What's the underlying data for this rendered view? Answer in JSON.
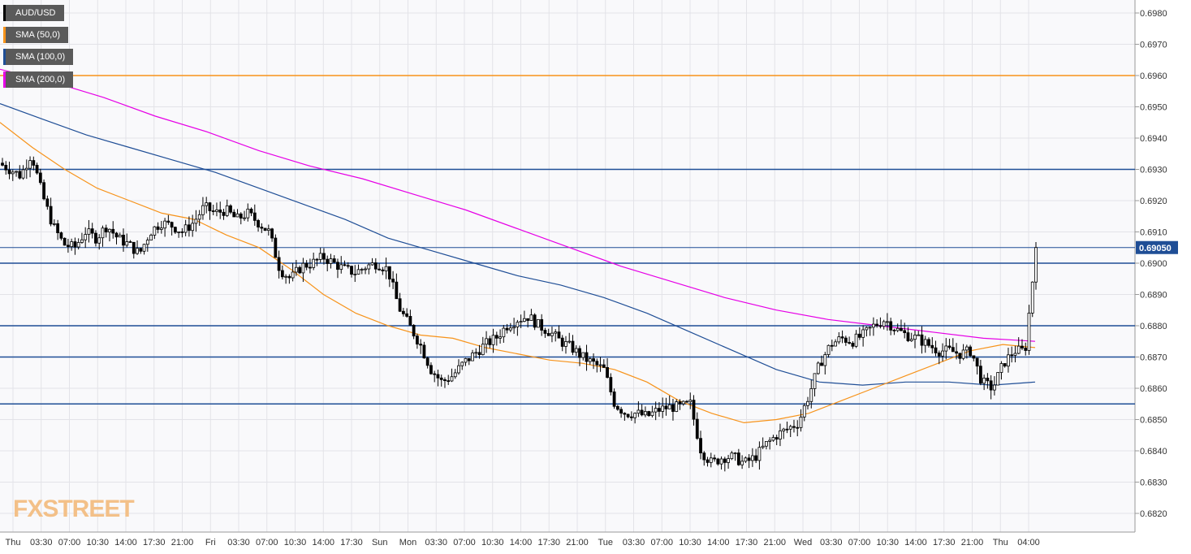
{
  "chart_data": {
    "type": "candlestick",
    "symbol": "AUD/USD",
    "legend": [
      {
        "label": "AUD/USD",
        "color": "#000000"
      },
      {
        "label": "SMA (50,0)",
        "color": "#f7931a"
      },
      {
        "label": "SMA (100,0)",
        "color": "#1f4e96"
      },
      {
        "label": "SMA (200,0)",
        "color": "#e600e6"
      }
    ],
    "y_ticks": [
      "0.6980",
      "0.6970",
      "0.6960",
      "0.6950",
      "0.6940",
      "0.6930",
      "0.6920",
      "0.6910",
      "0.6900",
      "0.6890",
      "0.6880",
      "0.6870",
      "0.6860",
      "0.6850",
      "0.6840",
      "0.6830",
      "0.6820"
    ],
    "ylim": [
      0.6813,
      0.6985
    ],
    "x_ticks": [
      "Thu",
      "03:30",
      "07:00",
      "10:30",
      "14:00",
      "17:30",
      "21:00",
      "Fri",
      "03:30",
      "07:00",
      "10:30",
      "14:00",
      "17:30",
      "Sun",
      "Mon",
      "03:30",
      "07:00",
      "10:30",
      "14:00",
      "17:30",
      "21:00",
      "Tue",
      "03:30",
      "07:00",
      "10:30",
      "14:00",
      "17:30",
      "21:00",
      "Wed",
      "03:30",
      "07:00",
      "10:30",
      "14:00",
      "17:30",
      "21:00",
      "Thu",
      "04:00"
    ],
    "current_price": "0.69050",
    "current_value": 0.6905,
    "horizontal_levels": [
      {
        "value": 0.696,
        "color": "#f7931a"
      },
      {
        "value": 0.693,
        "color": "#1f4e96"
      },
      {
        "value": 0.69,
        "color": "#1f4e96"
      },
      {
        "value": 0.688,
        "color": "#1f4e96"
      },
      {
        "value": 0.687,
        "color": "#1f4e96"
      },
      {
        "value": 0.6855,
        "color": "#1f4e96"
      }
    ],
    "price_path": [
      0.6932,
      0.693,
      0.6928,
      0.6935,
      0.6922,
      0.6912,
      0.6906,
      0.6905,
      0.691,
      0.6908,
      0.6912,
      0.6908,
      0.6906,
      0.6903,
      0.691,
      0.6913,
      0.6912,
      0.691,
      0.6913,
      0.6918,
      0.6916,
      0.6917,
      0.6914,
      0.6916,
      0.6913,
      0.691,
      0.6898,
      0.6895,
      0.6899,
      0.69,
      0.6902,
      0.69,
      0.6898,
      0.6897,
      0.6899,
      0.69,
      0.6898,
      0.6886,
      0.688,
      0.6874,
      0.6866,
      0.6862,
      0.6864,
      0.6868,
      0.6871,
      0.6874,
      0.6876,
      0.688,
      0.6882,
      0.6883,
      0.688,
      0.6878,
      0.6875,
      0.6873,
      0.687,
      0.6868,
      0.6866,
      0.6855,
      0.6852,
      0.6852,
      0.6851,
      0.6853,
      0.6854,
      0.6854,
      0.6855,
      0.684,
      0.6836,
      0.6838,
      0.6838,
      0.6836,
      0.6838,
      0.6842,
      0.6845,
      0.6847,
      0.6849,
      0.6858,
      0.6868,
      0.6874,
      0.6876,
      0.6875,
      0.6877,
      0.688,
      0.6882,
      0.6879,
      0.6877,
      0.6876,
      0.6874,
      0.6872,
      0.6872,
      0.6871,
      0.6872,
      0.6862,
      0.686,
      0.6868,
      0.6872,
      0.6872,
      0.6905
    ],
    "sma50_path": [
      0.6945,
      0.6937,
      0.693,
      0.6924,
      0.692,
      0.6916,
      0.6914,
      0.6909,
      0.6905,
      0.6898,
      0.689,
      0.6884,
      0.688,
      0.6877,
      0.6876,
      0.6873,
      0.6871,
      0.6869,
      0.6868,
      0.6866,
      0.6862,
      0.6856,
      0.6852,
      0.6849,
      0.685,
      0.6852,
      0.6856,
      0.686,
      0.6864,
      0.6868,
      0.6872,
      0.6874,
      0.6873
    ],
    "sma100_path": [
      0.6951,
      0.6946,
      0.6941,
      0.6937,
      0.6933,
      0.6929,
      0.6924,
      0.6919,
      0.6914,
      0.6908,
      0.6904,
      0.69,
      0.6896,
      0.6893,
      0.6889,
      0.6884,
      0.6878,
      0.6872,
      0.6866,
      0.6862,
      0.6861,
      0.6862,
      0.6862,
      0.6861,
      0.6862
    ],
    "sma200_path": [
      0.6962,
      0.6958,
      0.6953,
      0.6947,
      0.6942,
      0.6936,
      0.6931,
      0.6927,
      0.6922,
      0.6917,
      0.6911,
      0.6905,
      0.6899,
      0.6894,
      0.6889,
      0.6885,
      0.6882,
      0.688,
      0.6878,
      0.6876,
      0.6875
    ],
    "watermark": "FXSTREET"
  }
}
